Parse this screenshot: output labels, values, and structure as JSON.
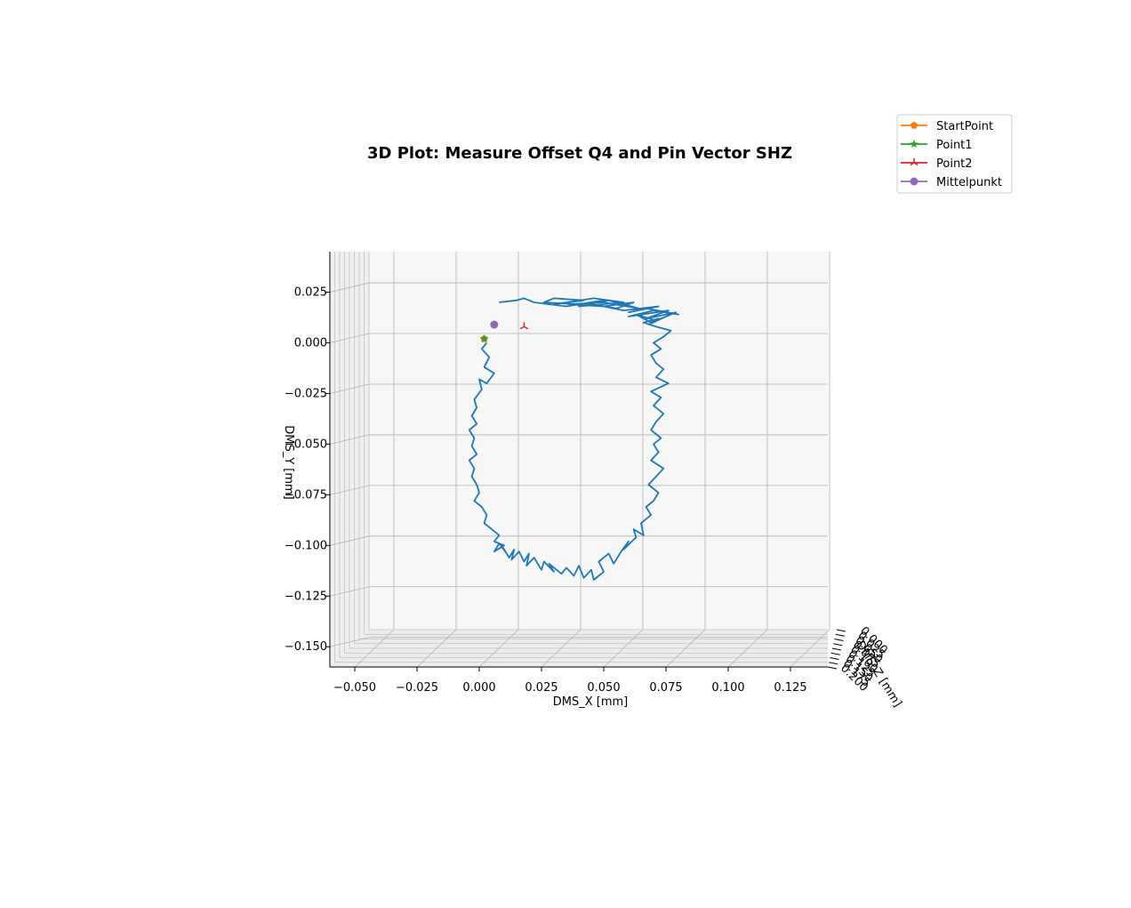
{
  "chart_data": {
    "type": "line",
    "projection": "3d",
    "title": "3D Plot: Measure Offset Q4 and Pin Vector SHZ",
    "xlabel": "DMS_X [mm]",
    "ylabel": "DMS_Y [mm]",
    "zlabel": "DMS_Z [mm]",
    "xlim": [
      -0.06,
      0.14
    ],
    "ylim": [
      -0.16,
      0.045
    ],
    "x_ticks": [
      "−0.050",
      "−0.025",
      "0.000",
      "0.025",
      "0.050",
      "0.075",
      "0.100",
      "0.125"
    ],
    "x_tick_values": [
      -0.05,
      -0.025,
      0.0,
      0.025,
      0.05,
      0.075,
      0.1,
      0.125
    ],
    "y_ticks": [
      "0.025",
      "0.000",
      "−0.025",
      "−0.050",
      "−0.075",
      "−0.100",
      "−0.125",
      "−0.150"
    ],
    "y_tick_values": [
      0.025,
      0.0,
      -0.025,
      -0.05,
      -0.075,
      -0.1,
      -0.125,
      -0.15
    ],
    "z_ticks": [
      "0.000",
      "0.025",
      "0.050",
      "0.075",
      "0.100",
      "0.125",
      "0.150",
      "0.175",
      "0.200"
    ],
    "grid": true,
    "legend_position": "top-right",
    "colors": {
      "trajectory": "#1f77b4",
      "StartPoint": "#ff7f0e",
      "Point1": "#2ca02c",
      "Point2": "#d62728",
      "Mittelpunkt": "#9467bd",
      "pane": "#f7f7f7",
      "grid": "#b0b0b0"
    },
    "legend": [
      {
        "name": "StartPoint",
        "marker": "pentagon",
        "color": "#ff7f0e"
      },
      {
        "name": "Point1",
        "marker": "star",
        "color": "#2ca02c"
      },
      {
        "name": "Point2",
        "marker": "tri",
        "color": "#d62728"
      },
      {
        "name": "Mittelpunkt",
        "marker": "circle",
        "color": "#9467bd"
      }
    ],
    "series": [
      {
        "type": "line",
        "x": [
          0.003,
          0.001,
          0.004,
          0.002,
          0.006,
          0.003,
          0.0,
          0.001,
          -0.002,
          -0.001,
          -0.003,
          -0.001,
          -0.004,
          -0.002,
          -0.003,
          -0.001,
          -0.004,
          -0.002,
          -0.003,
          -0.001,
          0.0,
          -0.002,
          0.001,
          0.003,
          0.002,
          0.005,
          0.008,
          0.006,
          0.01,
          0.006,
          0.008,
          0.011,
          0.009,
          0.012,
          0.014,
          0.013,
          0.016,
          0.018,
          0.02,
          0.019,
          0.022,
          0.025,
          0.026,
          0.03,
          0.028,
          0.033,
          0.035,
          0.038,
          0.04,
          0.042,
          0.045,
          0.046,
          0.05,
          0.048,
          0.052,
          0.054,
          0.057,
          0.06,
          0.058,
          0.063,
          0.062,
          0.066,
          0.065,
          0.069,
          0.067,
          0.07,
          0.072,
          0.068,
          0.071,
          0.074,
          0.069,
          0.072,
          0.07,
          0.073,
          0.069,
          0.071,
          0.074,
          0.07,
          0.073,
          0.069,
          0.076,
          0.071,
          0.074,
          0.071,
          0.069,
          0.073,
          0.07,
          0.074,
          0.077,
          0.071,
          0.066,
          0.072,
          0.068,
          0.075,
          0.069,
          0.063,
          0.071,
          0.079,
          0.067,
          0.076,
          0.06,
          0.07,
          0.08,
          0.067,
          0.06,
          0.072,
          0.058,
          0.046,
          0.055,
          0.062,
          0.05,
          0.036,
          0.05,
          0.064,
          0.052,
          0.04,
          0.058,
          0.046,
          0.03,
          0.042,
          0.03,
          0.026,
          0.04,
          0.05,
          0.035,
          0.022,
          0.018,
          0.015,
          0.008
        ],
        "y": [
          0.0,
          -0.003,
          -0.007,
          -0.012,
          -0.015,
          -0.02,
          -0.018,
          -0.023,
          -0.028,
          -0.032,
          -0.036,
          -0.04,
          -0.043,
          -0.047,
          -0.051,
          -0.055,
          -0.058,
          -0.062,
          -0.066,
          -0.07,
          -0.074,
          -0.078,
          -0.081,
          -0.085,
          -0.089,
          -0.092,
          -0.095,
          -0.098,
          -0.1,
          -0.103,
          -0.099,
          -0.104,
          -0.1,
          -0.106,
          -0.102,
          -0.107,
          -0.103,
          -0.108,
          -0.104,
          -0.11,
          -0.106,
          -0.112,
          -0.108,
          -0.113,
          -0.109,
          -0.114,
          -0.111,
          -0.115,
          -0.11,
          -0.116,
          -0.112,
          -0.117,
          -0.113,
          -0.108,
          -0.104,
          -0.109,
          -0.103,
          -0.098,
          -0.102,
          -0.096,
          -0.092,
          -0.095,
          -0.089,
          -0.085,
          -0.081,
          -0.078,
          -0.074,
          -0.07,
          -0.066,
          -0.062,
          -0.058,
          -0.054,
          -0.05,
          -0.047,
          -0.043,
          -0.039,
          -0.035,
          -0.031,
          -0.027,
          -0.024,
          -0.02,
          -0.017,
          -0.013,
          -0.01,
          -0.006,
          -0.003,
          0.0,
          0.003,
          0.006,
          0.008,
          0.01,
          0.012,
          0.009,
          0.013,
          0.01,
          0.014,
          0.011,
          0.015,
          0.012,
          0.016,
          0.013,
          0.016,
          0.014,
          0.017,
          0.015,
          0.018,
          0.016,
          0.019,
          0.017,
          0.02,
          0.018,
          0.019,
          0.02,
          0.017,
          0.021,
          0.018,
          0.02,
          0.022,
          0.019,
          0.021,
          0.022,
          0.02,
          0.019,
          0.021,
          0.018,
          0.02,
          0.022,
          0.021,
          0.02
        ]
      },
      {
        "type": "point",
        "name": "StartPoint",
        "x": 0.002,
        "y": 0.002
      },
      {
        "type": "point",
        "name": "Point1",
        "x": 0.002,
        "y": 0.002
      },
      {
        "type": "point",
        "name": "Point2",
        "x": 0.018,
        "y": 0.008
      },
      {
        "type": "point",
        "name": "Mittelpunkt",
        "x": 0.006,
        "y": 0.009
      }
    ]
  }
}
